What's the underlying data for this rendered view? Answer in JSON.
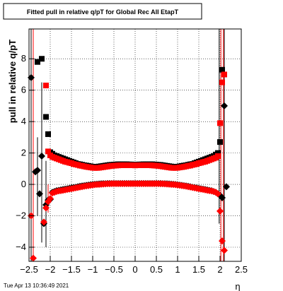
{
  "chart_data": {
    "type": "scatter",
    "title": "Fitted pull in relative q/pT for Global Rec All EtapT",
    "xlabel": "η",
    "ylabel": "pull in relative q/pT",
    "xlim": [
      -2.5,
      2.5
    ],
    "ylim": [
      -4.9,
      9.9
    ],
    "xticks": [
      -2.5,
      -2,
      -1.5,
      -1,
      -0.5,
      0,
      0.5,
      1,
      1.5,
      2,
      2.5
    ],
    "xtick_labels": [
      "−2.5",
      "−2",
      "−1.5",
      "−1",
      "−0.5",
      "0",
      "0.5",
      "1",
      "1.5",
      "2",
      "2.5"
    ],
    "yticks": [
      -4,
      -2,
      0,
      2,
      4,
      6,
      8
    ],
    "ytick_labels": [
      "−4",
      "−2",
      "0",
      "2",
      "4",
      "6",
      "8"
    ],
    "grid": true,
    "timestamp": "Tue Apr 13 10:36:49 2021",
    "colors": {
      "black": "#000000",
      "red": "#ff0000"
    },
    "series": [
      {
        "marker": "square",
        "color": "#000000",
        "x": [
          -2.3,
          -2.2,
          -2.1,
          -2.05,
          -2.0,
          -1.95,
          -1.9,
          -1.85,
          -1.8,
          -1.75,
          -1.7,
          -1.65,
          -1.6,
          -1.55,
          -1.5,
          -1.45,
          -1.4,
          -1.35,
          -1.3,
          -1.25,
          -1.2,
          -1.15,
          -1.1,
          -1.05,
          -1.0,
          -0.95,
          -0.9,
          -0.85,
          -0.8,
          -0.75,
          -0.7,
          -0.65,
          -0.6,
          -0.55,
          -0.5,
          -0.45,
          -0.4,
          -0.35,
          -0.3,
          -0.25,
          -0.2,
          -0.15,
          -0.1,
          -0.05,
          0.0,
          0.05,
          0.1,
          0.15,
          0.2,
          0.25,
          0.3,
          0.35,
          0.4,
          0.45,
          0.5,
          0.55,
          0.6,
          0.65,
          0.7,
          0.75,
          0.8,
          0.85,
          0.9,
          0.95,
          1.0,
          1.05,
          1.1,
          1.15,
          1.2,
          1.25,
          1.3,
          1.35,
          1.4,
          1.45,
          1.5,
          1.55,
          1.6,
          1.65,
          1.7,
          1.75,
          1.8,
          1.85,
          1.9,
          1.95,
          2.0
        ],
        "y": [
          7.8,
          8.0,
          4.3,
          3.2,
          2.05,
          1.95,
          1.85,
          1.8,
          1.75,
          1.7,
          1.65,
          1.6,
          1.55,
          1.5,
          1.45,
          1.4,
          1.35,
          1.3,
          1.28,
          1.25,
          1.22,
          1.2,
          1.18,
          1.15,
          1.13,
          1.12,
          1.12,
          1.14,
          1.16,
          1.18,
          1.2,
          1.22,
          1.24,
          1.25,
          1.26,
          1.27,
          1.28,
          1.28,
          1.28,
          1.28,
          1.28,
          1.27,
          1.27,
          1.26,
          1.26,
          1.26,
          1.27,
          1.27,
          1.28,
          1.28,
          1.28,
          1.28,
          1.28,
          1.27,
          1.26,
          1.25,
          1.24,
          1.22,
          1.2,
          1.18,
          1.16,
          1.14,
          1.12,
          1.12,
          1.13,
          1.15,
          1.18,
          1.2,
          1.22,
          1.25,
          1.28,
          1.3,
          1.35,
          1.4,
          1.45,
          1.5,
          1.55,
          1.6,
          1.65,
          1.7,
          1.75,
          1.8,
          1.9,
          2.0,
          2.7
        ]
      },
      {
        "marker": "square",
        "color": "#000000",
        "x": [
          2.05
        ],
        "y": [
          7.3
        ]
      },
      {
        "marker": "square",
        "color": "#ff0000",
        "x": [
          -2.1,
          -2.05,
          -2.0,
          -1.95,
          -1.9,
          -1.85,
          -1.8,
          -1.75,
          -1.7,
          -1.65,
          -1.6,
          -1.55,
          -1.5,
          -1.45,
          -1.4,
          -1.35,
          -1.3,
          -1.25,
          -1.2,
          -1.15,
          -1.1,
          -1.05,
          -1.0,
          -0.95,
          -0.9,
          -0.85,
          -0.8,
          -0.75,
          -0.7,
          -0.65,
          -0.6,
          -0.55,
          -0.5,
          -0.45,
          -0.4,
          -0.35,
          -0.3,
          -0.25,
          -0.2,
          -0.15,
          -0.1,
          -0.05,
          0.0,
          0.05,
          0.1,
          0.15,
          0.2,
          0.25,
          0.3,
          0.35,
          0.4,
          0.45,
          0.5,
          0.55,
          0.6,
          0.65,
          0.7,
          0.75,
          0.8,
          0.85,
          0.9,
          0.95,
          1.0,
          1.05,
          1.1,
          1.15,
          1.2,
          1.25,
          1.3,
          1.35,
          1.4,
          1.45,
          1.5,
          1.55,
          1.6,
          1.65,
          1.7,
          1.75,
          1.8,
          1.85,
          1.9,
          1.95,
          2.0,
          2.05,
          2.1
        ],
        "y": [
          6.3,
          2.1,
          1.85,
          1.75,
          1.7,
          1.65,
          1.6,
          1.55,
          1.5,
          1.45,
          1.42,
          1.38,
          1.35,
          1.3,
          1.27,
          1.24,
          1.2,
          1.18,
          1.15,
          1.12,
          1.1,
          1.08,
          1.06,
          1.05,
          1.05,
          1.06,
          1.08,
          1.1,
          1.12,
          1.14,
          1.16,
          1.18,
          1.19,
          1.2,
          1.21,
          1.22,
          1.22,
          1.22,
          1.22,
          1.22,
          1.22,
          1.22,
          1.21,
          1.22,
          1.22,
          1.22,
          1.22,
          1.22,
          1.22,
          1.22,
          1.21,
          1.2,
          1.19,
          1.18,
          1.16,
          1.14,
          1.12,
          1.1,
          1.08,
          1.06,
          1.05,
          1.05,
          1.06,
          1.08,
          1.1,
          1.12,
          1.15,
          1.18,
          1.2,
          1.24,
          1.27,
          1.3,
          1.35,
          1.38,
          1.42,
          1.45,
          1.5,
          1.55,
          1.6,
          1.65,
          1.7,
          1.8,
          3.9,
          6.5,
          7.0
        ]
      },
      {
        "marker": "diamond",
        "color": "#000000",
        "x": [
          -2.45,
          -2.35,
          -2.3,
          -2.25,
          -2.2,
          -2.15,
          -2.1,
          -2.05,
          -2.0,
          -1.95,
          -1.9,
          -1.85,
          -1.8,
          -1.75,
          -1.7,
          -1.65,
          -1.6,
          -1.55,
          -1.5,
          -1.45,
          -1.4,
          -1.35,
          -1.3,
          -1.25,
          -1.2,
          -1.15,
          -1.1,
          -1.05,
          -1.0,
          -0.95,
          -0.9,
          -0.85,
          -0.8,
          -0.75,
          -0.7,
          -0.65,
          -0.6,
          -0.55,
          -0.5,
          -0.45,
          -0.4,
          -0.35,
          -0.3,
          -0.25,
          -0.2,
          -0.15,
          -0.1,
          -0.05,
          0.0,
          0.05,
          0.1,
          0.15,
          0.2,
          0.25,
          0.3,
          0.35,
          0.4,
          0.45,
          0.5,
          0.55,
          0.6,
          0.65,
          0.7,
          0.75,
          0.8,
          0.85,
          0.9,
          0.95,
          1.0,
          1.05,
          1.1,
          1.15,
          1.2,
          1.25,
          1.3,
          1.35,
          1.4,
          1.45,
          1.5,
          1.55,
          1.6,
          1.65,
          1.7,
          1.75,
          1.8,
          1.85,
          1.9,
          1.95,
          2.0,
          2.05,
          2.1,
          2.15
        ],
        "y": [
          6.8,
          0.8,
          0.9,
          -0.6,
          1.8,
          -2.5,
          -1.3,
          -1.0,
          -0.95,
          -0.5,
          -0.45,
          -0.4,
          -0.38,
          -0.35,
          -0.32,
          -0.3,
          -0.28,
          -0.25,
          -0.22,
          -0.2,
          -0.18,
          -0.15,
          -0.12,
          -0.1,
          -0.08,
          -0.06,
          -0.04,
          -0.02,
          0.0,
          0.01,
          0.02,
          0.03,
          0.04,
          0.05,
          0.05,
          0.06,
          0.06,
          0.06,
          0.06,
          0.06,
          0.06,
          0.06,
          0.06,
          0.06,
          0.06,
          0.06,
          0.06,
          0.06,
          0.06,
          0.06,
          0.06,
          0.06,
          0.06,
          0.06,
          0.06,
          0.06,
          0.06,
          0.06,
          0.06,
          0.06,
          0.06,
          0.05,
          0.05,
          0.04,
          0.03,
          0.02,
          0.01,
          0.0,
          -0.02,
          -0.04,
          -0.06,
          -0.08,
          -0.1,
          -0.12,
          -0.15,
          -0.18,
          -0.2,
          -0.22,
          -0.25,
          -0.28,
          -0.3,
          -0.32,
          -0.35,
          -0.38,
          -0.4,
          -0.45,
          -0.5,
          -0.6,
          -0.7,
          -0.85,
          5.0,
          -0.15
        ]
      },
      {
        "marker": "diamond",
        "color": "#ff0000",
        "x": [
          -2.45,
          -2.4,
          -2.15,
          -2.1,
          -2.05,
          -2.0,
          -1.95,
          -1.9,
          -1.85,
          -1.8,
          -1.75,
          -1.7,
          -1.65,
          -1.6,
          -1.55,
          -1.5,
          -1.45,
          -1.4,
          -1.35,
          -1.3,
          -1.25,
          -1.2,
          -1.15,
          -1.1,
          -1.05,
          -1.0,
          -0.95,
          -0.9,
          -0.85,
          -0.8,
          -0.75,
          -0.7,
          -0.65,
          -0.6,
          -0.55,
          -0.5,
          -0.45,
          -0.4,
          -0.35,
          -0.3,
          -0.25,
          -0.2,
          -0.15,
          -0.1,
          -0.05,
          0.0,
          0.05,
          0.1,
          0.15,
          0.2,
          0.25,
          0.3,
          0.35,
          0.4,
          0.45,
          0.5,
          0.55,
          0.6,
          0.65,
          0.7,
          0.75,
          0.8,
          0.85,
          0.9,
          0.95,
          1.0,
          1.05,
          1.1,
          1.15,
          1.2,
          1.25,
          1.3,
          1.35,
          1.4,
          1.45,
          1.5,
          1.55,
          1.6,
          1.65,
          1.7,
          1.75,
          1.8,
          1.85,
          1.9,
          1.95,
          2.0,
          2.05,
          2.1
        ],
        "y": [
          -2.0,
          -4.7,
          -2.4,
          -1.5,
          -1.1,
          -0.9,
          -0.55,
          -0.5,
          -0.45,
          -0.42,
          -0.4,
          -0.38,
          -0.35,
          -0.32,
          -0.3,
          -0.28,
          -0.25,
          -0.22,
          -0.2,
          -0.17,
          -0.15,
          -0.12,
          -0.1,
          -0.08,
          -0.06,
          -0.04,
          -0.02,
          -0.01,
          0.0,
          0.01,
          0.02,
          0.03,
          0.04,
          0.04,
          0.05,
          0.05,
          0.05,
          0.05,
          0.05,
          0.05,
          0.05,
          0.05,
          0.05,
          0.05,
          0.05,
          0.05,
          0.05,
          0.05,
          0.05,
          0.05,
          0.05,
          0.05,
          0.05,
          0.05,
          0.05,
          0.05,
          0.05,
          0.04,
          0.04,
          0.03,
          0.02,
          0.01,
          0.0,
          -0.01,
          -0.02,
          -0.04,
          -0.06,
          -0.08,
          -0.1,
          -0.12,
          -0.15,
          -0.17,
          -0.2,
          -0.22,
          -0.25,
          -0.28,
          -0.3,
          -0.32,
          -0.35,
          -0.38,
          -0.4,
          -0.42,
          -0.45,
          -0.5,
          -0.6,
          -1.7,
          -3.6,
          -4.2
        ]
      }
    ],
    "errorbars": [
      {
        "x": -2.45,
        "ylow": -4.9,
        "yhigh": 9.9,
        "color": "#000000"
      },
      {
        "x": -2.4,
        "ylow": -4.9,
        "yhigh": 9.9,
        "color": "#ff0000"
      },
      {
        "x": -2.3,
        "ylow": -2.0,
        "yhigh": 3.0,
        "color": "#000000"
      },
      {
        "x": -2.2,
        "ylow": -3.7,
        "yhigh": 6.5,
        "color": "#000000"
      },
      {
        "x": -2.1,
        "ylow": -4.0,
        "yhigh": 1.5,
        "color": "#000000"
      },
      {
        "x": -2.05,
        "ylow": -1.8,
        "yhigh": 0.0,
        "color": "#ff0000"
      },
      {
        "x": 1.98,
        "ylow": -2.5,
        "yhigh": 9.9,
        "color": "#000000"
      },
      {
        "x": 2.02,
        "ylow": -4.9,
        "yhigh": 9.9,
        "color": "#ff0000"
      },
      {
        "x": 2.1,
        "ylow": -4.9,
        "yhigh": 9.9,
        "color": "#000000"
      },
      {
        "x": 2.08,
        "ylow": -4.9,
        "yhigh": 9.9,
        "color": "#ff0000"
      }
    ]
  }
}
